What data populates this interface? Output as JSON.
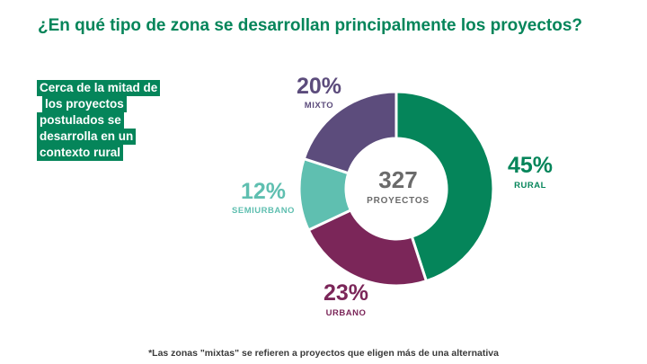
{
  "title": "¿En qué tipo de zona se desarrollan principalmente los proyectos?",
  "callout": {
    "lines": [
      "Cerca de la mitad de",
      "los proyectos",
      "postulados se",
      "desarrolla en un",
      "contexto rural"
    ]
  },
  "footnote": "*Las zonas \"mixtas\" se refieren a proyectos que eligen más de una alternativa",
  "colors": {
    "accent": "#05855a",
    "rural": "#05855a",
    "urbano": "#7b2659",
    "semiurbano": "#5fbfb0",
    "mixto": "#5c4c7c"
  },
  "chart_data": {
    "type": "pie",
    "donut": true,
    "center_value": "327",
    "center_label": "PROYECTOS",
    "slices": [
      {
        "label": "RURAL",
        "value": 45,
        "display": "45%",
        "color": "#05855a"
      },
      {
        "label": "URBANO",
        "value": 23,
        "display": "23%",
        "color": "#7b2659"
      },
      {
        "label": "SEMIURBANO",
        "value": 12,
        "display": "12%",
        "color": "#5fbfb0"
      },
      {
        "label": "MIXTO",
        "value": 20,
        "display": "20%",
        "color": "#5c4c7c"
      }
    ]
  }
}
